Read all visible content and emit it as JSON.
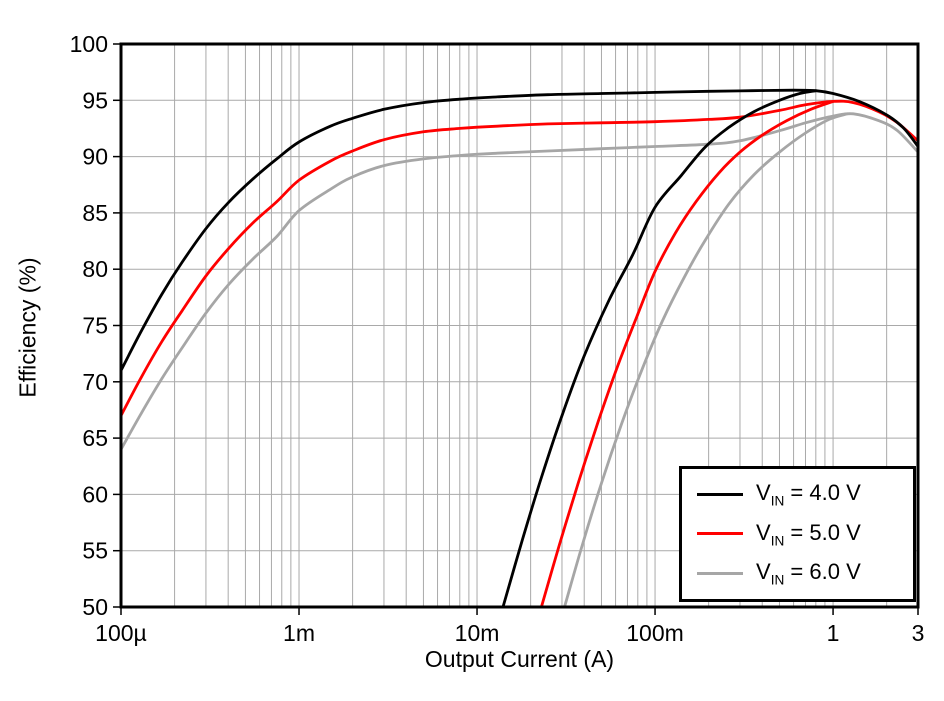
{
  "chart_data": {
    "type": "line",
    "title": "",
    "xlabel": "Output Current (A)",
    "ylabel": "Efficiency (%)",
    "x_scale": "log",
    "xlim": [
      0.0001,
      3
    ],
    "ylim": [
      50,
      100
    ],
    "grid": {
      "minor_x": true,
      "color": "#a9a9a9",
      "frame_color": "#000000"
    },
    "x_ticks": [
      {
        "v": 0.0001,
        "label": "100µ"
      },
      {
        "v": 0.001,
        "label": "1m"
      },
      {
        "v": 0.01,
        "label": "10m"
      },
      {
        "v": 0.1,
        "label": "100m"
      },
      {
        "v": 1,
        "label": "1"
      },
      {
        "v": 3,
        "label": "3"
      }
    ],
    "y_ticks": [
      50,
      55,
      60,
      65,
      70,
      75,
      80,
      85,
      90,
      95,
      100
    ],
    "series": [
      {
        "name": "VIN = 4.0 V",
        "color": "#000000",
        "auto_mode_points": [
          [
            0.0001,
            71
          ],
          [
            0.00013,
            74.5
          ],
          [
            0.00017,
            77.8
          ],
          [
            0.00022,
            80.6
          ],
          [
            0.0003,
            83.6
          ],
          [
            0.0004,
            85.9
          ],
          [
            0.00055,
            88.0
          ],
          [
            0.00075,
            89.8
          ],
          [
            0.001,
            91.3
          ],
          [
            0.0015,
            92.7
          ],
          [
            0.002,
            93.4
          ],
          [
            0.003,
            94.2
          ],
          [
            0.005,
            94.8
          ],
          [
            0.008,
            95.1
          ],
          [
            0.013,
            95.3
          ],
          [
            0.025,
            95.5
          ],
          [
            0.05,
            95.6
          ],
          [
            0.1,
            95.7
          ],
          [
            0.2,
            95.8
          ],
          [
            0.35,
            95.85
          ],
          [
            0.6,
            95.9
          ],
          [
            0.8,
            95.85
          ],
          [
            1,
            95.6
          ],
          [
            1.4,
            94.9
          ],
          [
            2,
            93.7
          ],
          [
            2.5,
            92.5
          ],
          [
            3,
            90.9
          ]
        ],
        "fpwm_points": [
          [
            0.014,
            50
          ],
          [
            0.018,
            56
          ],
          [
            0.023,
            61.5
          ],
          [
            0.03,
            67
          ],
          [
            0.04,
            72.3
          ],
          [
            0.055,
            77.2
          ],
          [
            0.075,
            81.3
          ],
          [
            0.1,
            85.5
          ],
          [
            0.14,
            88.3
          ],
          [
            0.19,
            90.8
          ],
          [
            0.26,
            92.6
          ],
          [
            0.36,
            94.0
          ],
          [
            0.5,
            95.0
          ],
          [
            0.65,
            95.6
          ],
          [
            0.8,
            95.85
          ]
        ]
      },
      {
        "name": "VIN = 5.0 V",
        "color": "#ff0000",
        "auto_mode_points": [
          [
            0.0001,
            67
          ],
          [
            0.00013,
            70.4
          ],
          [
            0.00017,
            73.6
          ],
          [
            0.00022,
            76.3
          ],
          [
            0.0003,
            79.4
          ],
          [
            0.0004,
            81.8
          ],
          [
            0.00055,
            84.1
          ],
          [
            0.00075,
            86.0
          ],
          [
            0.001,
            87.9
          ],
          [
            0.0015,
            89.6
          ],
          [
            0.002,
            90.5
          ],
          [
            0.003,
            91.5
          ],
          [
            0.005,
            92.2
          ],
          [
            0.008,
            92.5
          ],
          [
            0.013,
            92.7
          ],
          [
            0.025,
            92.9
          ],
          [
            0.05,
            93.0
          ],
          [
            0.1,
            93.1
          ],
          [
            0.2,
            93.3
          ],
          [
            0.3,
            93.5
          ],
          [
            0.5,
            94.1
          ],
          [
            0.7,
            94.6
          ],
          [
            1,
            94.9
          ],
          [
            1.3,
            94.8
          ],
          [
            1.8,
            94.0
          ],
          [
            2.3,
            93.0
          ],
          [
            3,
            91.4
          ]
        ],
        "fpwm_points": [
          [
            0.023,
            50
          ],
          [
            0.029,
            55.5
          ],
          [
            0.037,
            61
          ],
          [
            0.048,
            66.5
          ],
          [
            0.062,
            71.5
          ],
          [
            0.08,
            76
          ],
          [
            0.1,
            79.8
          ],
          [
            0.13,
            83.2
          ],
          [
            0.17,
            86
          ],
          [
            0.23,
            88.6
          ],
          [
            0.3,
            90.4
          ],
          [
            0.4,
            91.9
          ],
          [
            0.55,
            93.2
          ],
          [
            0.75,
            94.2
          ],
          [
            1,
            94.9
          ]
        ]
      },
      {
        "name": "VIN = 6.0 V",
        "color": "#a6a6a6",
        "auto_mode_points": [
          [
            0.0001,
            64
          ],
          [
            0.00013,
            67.2
          ],
          [
            0.00017,
            70.3
          ],
          [
            0.00022,
            73.0
          ],
          [
            0.0003,
            76.1
          ],
          [
            0.0004,
            78.6
          ],
          [
            0.00055,
            80.9
          ],
          [
            0.00075,
            82.9
          ],
          [
            0.001,
            85.2
          ],
          [
            0.0015,
            87.1
          ],
          [
            0.002,
            88.2
          ],
          [
            0.003,
            89.2
          ],
          [
            0.005,
            89.8
          ],
          [
            0.008,
            90.1
          ],
          [
            0.013,
            90.3
          ],
          [
            0.025,
            90.5
          ],
          [
            0.05,
            90.7
          ],
          [
            0.1,
            90.9
          ],
          [
            0.2,
            91.1
          ],
          [
            0.3,
            91.4
          ],
          [
            0.5,
            92.3
          ],
          [
            0.7,
            93.0
          ],
          [
            1,
            93.6
          ],
          [
            1.3,
            93.8
          ],
          [
            1.8,
            93.2
          ],
          [
            2.3,
            92.3
          ],
          [
            3,
            90.4
          ]
        ],
        "fpwm_points": [
          [
            0.031,
            50
          ],
          [
            0.039,
            55.5
          ],
          [
            0.05,
            61
          ],
          [
            0.065,
            66.3
          ],
          [
            0.085,
            71.2
          ],
          [
            0.11,
            75.4
          ],
          [
            0.145,
            79.2
          ],
          [
            0.19,
            82.5
          ],
          [
            0.26,
            85.8
          ],
          [
            0.36,
            88.4
          ],
          [
            0.5,
            90.4
          ],
          [
            0.7,
            92.1
          ],
          [
            0.95,
            93.3
          ],
          [
            1.2,
            93.8
          ]
        ]
      }
    ],
    "legend": {
      "position": "lower right",
      "entries": [
        {
          "prefix": "V",
          "sub": "IN",
          "rest": " = 4.0 V",
          "color": "#000000"
        },
        {
          "prefix": "V",
          "sub": "IN",
          "rest": " = 5.0 V",
          "color": "#ff0000"
        },
        {
          "prefix": "V",
          "sub": "IN",
          "rest": " = 6.0 V",
          "color": "#a6a6a6"
        }
      ]
    }
  }
}
